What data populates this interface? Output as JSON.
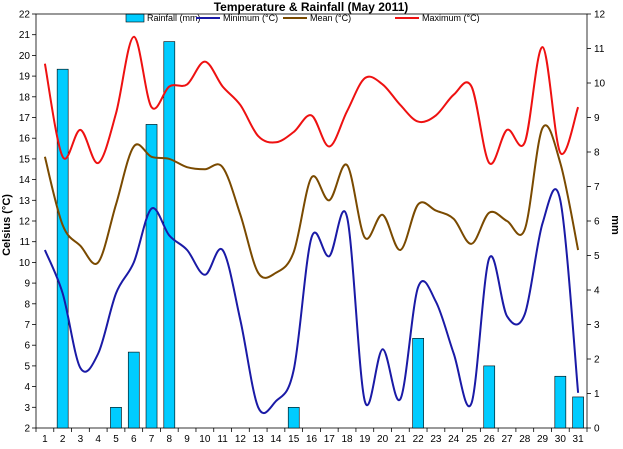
{
  "chart_data": {
    "type": "bar+line",
    "title": "Temperature & Rainfall (May 2011)",
    "xlabel": "",
    "ylabel": "Celsius (°C)",
    "y2label": "mm",
    "ylim": [
      2,
      22
    ],
    "y2lim": [
      0,
      12
    ],
    "grid": false,
    "legend_position": "top",
    "x": [
      1,
      2,
      3,
      4,
      5,
      6,
      7,
      8,
      9,
      10,
      11,
      12,
      13,
      14,
      15,
      16,
      17,
      18,
      19,
      20,
      21,
      22,
      23,
      24,
      25,
      26,
      27,
      28,
      29,
      30,
      31
    ],
    "series": [
      {
        "name": "Rainfall (mm)",
        "type": "bar",
        "axis": "right",
        "color": "#00ccff",
        "values": [
          0,
          10.4,
          0,
          0,
          0.6,
          2.2,
          8.8,
          11.2,
          0,
          0,
          0,
          0,
          0,
          0,
          0.6,
          0,
          0,
          0,
          0,
          0,
          0,
          2.6,
          0,
          0,
          0,
          1.8,
          0,
          0,
          0,
          1.5,
          0.9
        ]
      },
      {
        "name": "Minimum (°C)",
        "type": "line",
        "axis": "left",
        "color": "#1a1aa6",
        "values": [
          10.6,
          8.5,
          4.9,
          5.6,
          8.5,
          10.0,
          12.6,
          11.3,
          10.6,
          9.4,
          10.6,
          7.2,
          3.0,
          3.3,
          4.8,
          11.2,
          10.3,
          12.2,
          3.3,
          5.8,
          3.4,
          8.8,
          8.1,
          5.6,
          3.2,
          10.2,
          7.4,
          7.5,
          11.9,
          13.0,
          3.7
        ]
      },
      {
        "name": "Mean (°C)",
        "type": "line",
        "axis": "left",
        "color": "#7a4a00",
        "values": [
          15.1,
          11.8,
          10.8,
          10.0,
          12.8,
          15.6,
          15.1,
          15.0,
          14.6,
          14.5,
          14.6,
          12.3,
          9.5,
          9.5,
          10.5,
          14.1,
          13.0,
          14.7,
          11.2,
          12.3,
          10.6,
          12.8,
          12.5,
          12.1,
          10.9,
          12.4,
          12.0,
          11.6,
          16.5,
          14.8,
          10.6
        ]
      },
      {
        "name": "Maximum (°C)",
        "type": "line",
        "axis": "left",
        "color": "#ee1111",
        "values": [
          19.6,
          15.1,
          16.4,
          14.8,
          17.2,
          20.9,
          17.5,
          18.5,
          18.6,
          19.7,
          18.5,
          17.6,
          16.1,
          15.8,
          16.3,
          17.1,
          15.6,
          17.3,
          18.9,
          18.6,
          17.6,
          16.8,
          17.1,
          18.1,
          18.5,
          14.8,
          16.4,
          15.8,
          20.4,
          15.3,
          17.5
        ]
      }
    ]
  }
}
